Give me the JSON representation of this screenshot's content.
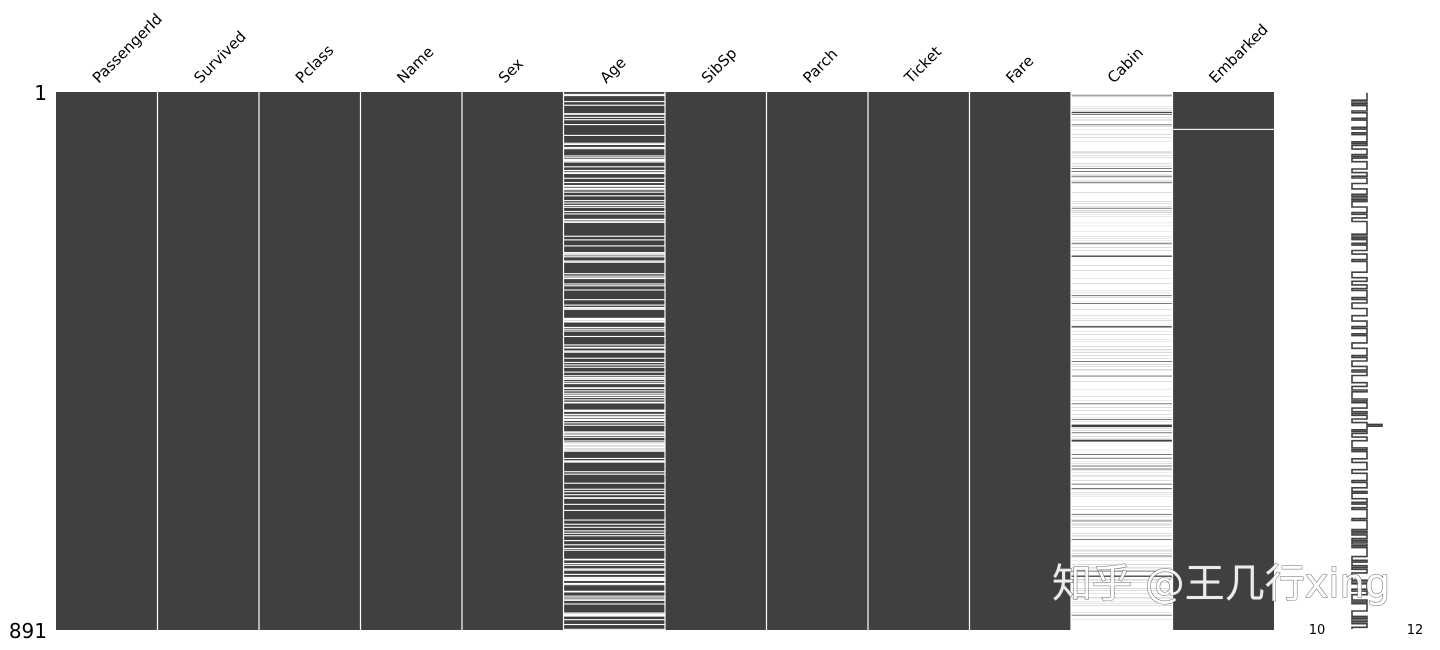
{
  "chart_data": {
    "type": "heatmap",
    "kind": "missingness-matrix",
    "total_rows": 891,
    "columns": [
      {
        "name": "PassengerId",
        "missing_fraction": 0.0
      },
      {
        "name": "Survived",
        "missing_fraction": 0.0
      },
      {
        "name": "Pclass",
        "missing_fraction": 0.0
      },
      {
        "name": "Name",
        "missing_fraction": 0.0
      },
      {
        "name": "Sex",
        "missing_fraction": 0.0
      },
      {
        "name": "Age",
        "missing_fraction": 0.2
      },
      {
        "name": "SibSp",
        "missing_fraction": 0.0
      },
      {
        "name": "Parch",
        "missing_fraction": 0.0
      },
      {
        "name": "Ticket",
        "missing_fraction": 0.0
      },
      {
        "name": "Fare",
        "missing_fraction": 0.0
      },
      {
        "name": "Cabin",
        "missing_fraction": 0.77
      },
      {
        "name": "Embarked",
        "missing_fraction": 0.002
      }
    ],
    "row_ticks": [
      "1",
      "891"
    ],
    "sparkline": {
      "min_label": "10",
      "max_label": "12"
    },
    "colors": {
      "present": "#404040",
      "missing": "#ffffff",
      "background": "#ffffff"
    }
  },
  "watermark": "知乎 @王几行xing"
}
